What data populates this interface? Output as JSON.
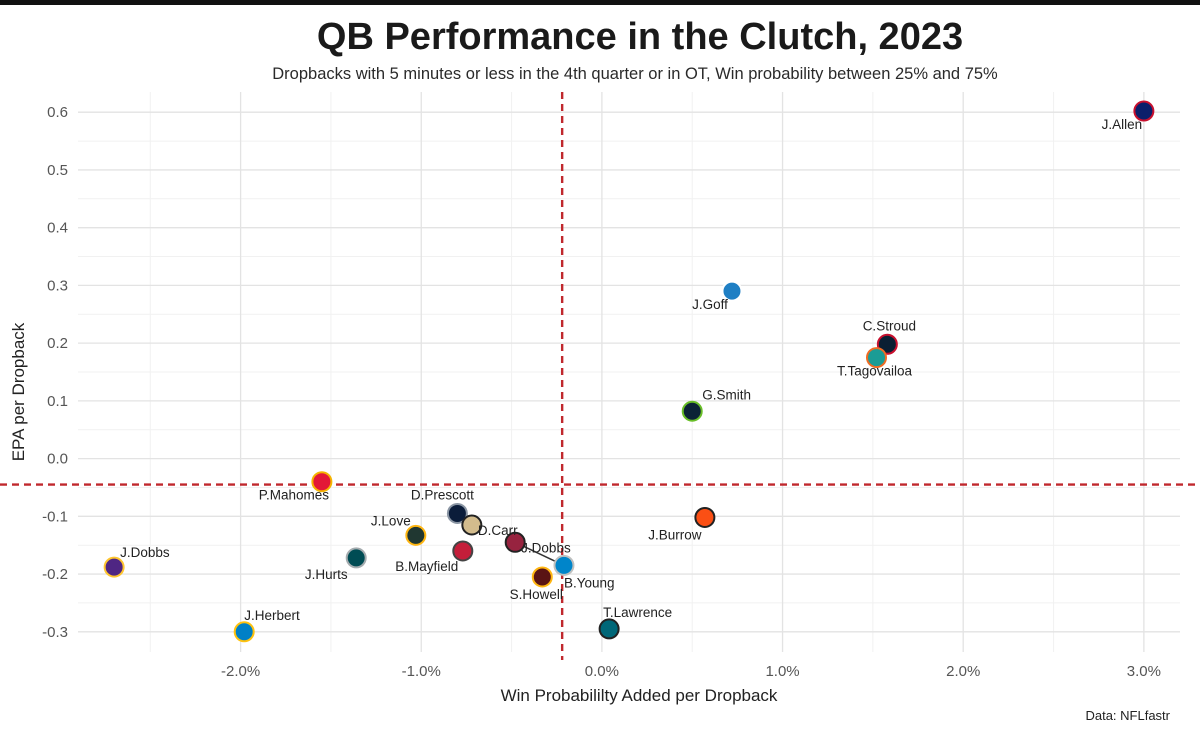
{
  "chart_data": {
    "type": "scatter",
    "title": "QB Performance in the Clutch, 2023",
    "subtitle": "Dropbacks with 5 minutes or less in the 4th quarter or in OT, Win probability between 25% and 75%",
    "xlabel": "Win Probabililty Added per Dropback",
    "ylabel": "EPA per Dropback",
    "source": "Data: NFLfastr",
    "xlim": [
      -2.9,
      3.2
    ],
    "ylim": [
      -0.335,
      0.635
    ],
    "x_ticks": [
      -2,
      -1,
      0,
      1,
      2,
      3
    ],
    "x_tick_labels": [
      "-2.0%",
      "-1.0%",
      "0.0%",
      "1.0%",
      "2.0%",
      "3.0%"
    ],
    "y_ticks": [
      -0.3,
      -0.2,
      -0.1,
      0.0,
      0.1,
      0.2,
      0.3,
      0.4,
      0.5,
      0.6
    ],
    "y_tick_labels": [
      "-0.3",
      "-0.2",
      "-0.1",
      "0.0",
      "0.1",
      "0.2",
      "0.3",
      "0.4",
      "0.5",
      "0.6"
    ],
    "grid": true,
    "reference_lines": {
      "x": -0.22,
      "y": -0.045,
      "color": "#c0282d"
    },
    "points": [
      {
        "name": "J.Allen",
        "x": 3.0,
        "y": 0.602,
        "color": "#0b1f6b",
        "ring": "#c8102e"
      },
      {
        "name": "J.Goff",
        "x": 0.72,
        "y": 0.29,
        "color": "#1f7fc4",
        "ring": "#ffffff"
      },
      {
        "name": "C.Stroud",
        "x": 1.58,
        "y": 0.198,
        "color": "#0a1f33",
        "ring": "#c8102e"
      },
      {
        "name": "T.Tagovailoa",
        "x": 1.52,
        "y": 0.175,
        "color": "#1b9c95",
        "ring": "#f06b23"
      },
      {
        "name": "G.Smith",
        "x": 0.5,
        "y": 0.082,
        "color": "#0b2236",
        "ring": "#69be28"
      },
      {
        "name": "P.Mahomes",
        "x": -1.55,
        "y": -0.04,
        "color": "#e31837",
        "ring": "#f5b400"
      },
      {
        "name": "D.Prescott",
        "x": -0.8,
        "y": -0.095,
        "color": "#0b1d3a",
        "ring": "#8a95a3"
      },
      {
        "name": "D.Carr",
        "x": -0.72,
        "y": -0.115,
        "color": "#d3bc8d",
        "ring": "#222222"
      },
      {
        "name": "J.Love",
        "x": -1.03,
        "y": -0.133,
        "color": "#203731",
        "ring": "#ffb612"
      },
      {
        "name": "J.Dobbs",
        "x": -0.48,
        "y": -0.145,
        "color": "#97233f",
        "ring": "#222222"
      },
      {
        "name": "B.Mayfield",
        "x": -0.77,
        "y": -0.16,
        "color": "#c41e3a",
        "ring": "#444444"
      },
      {
        "name": "J.Hurts",
        "x": -1.36,
        "y": -0.172,
        "color": "#004c54",
        "ring": "#a5acaf"
      },
      {
        "name": "B.Young",
        "x": -0.21,
        "y": -0.185,
        "color": "#0085ca",
        "ring": "#bfc0bf"
      },
      {
        "name": "S.Howell",
        "x": -0.33,
        "y": -0.205,
        "color": "#5a1414",
        "ring": "#ffb612"
      },
      {
        "name": "J.Dobbs",
        "x": -2.7,
        "y": -0.188,
        "color": "#4f2683",
        "ring": "#ffc62f"
      },
      {
        "name": "J.Burrow",
        "x": 0.57,
        "y": -0.102,
        "color": "#fb4f14",
        "ring": "#222222"
      },
      {
        "name": "J.Herbert",
        "x": -1.98,
        "y": -0.3,
        "color": "#0080c6",
        "ring": "#ffc20e"
      },
      {
        "name": "T.Lawrence",
        "x": 0.04,
        "y": -0.295,
        "color": "#006778",
        "ring": "#222222"
      }
    ],
    "connector": {
      "from": "J.Dobbs",
      "to": "B.Young"
    }
  }
}
